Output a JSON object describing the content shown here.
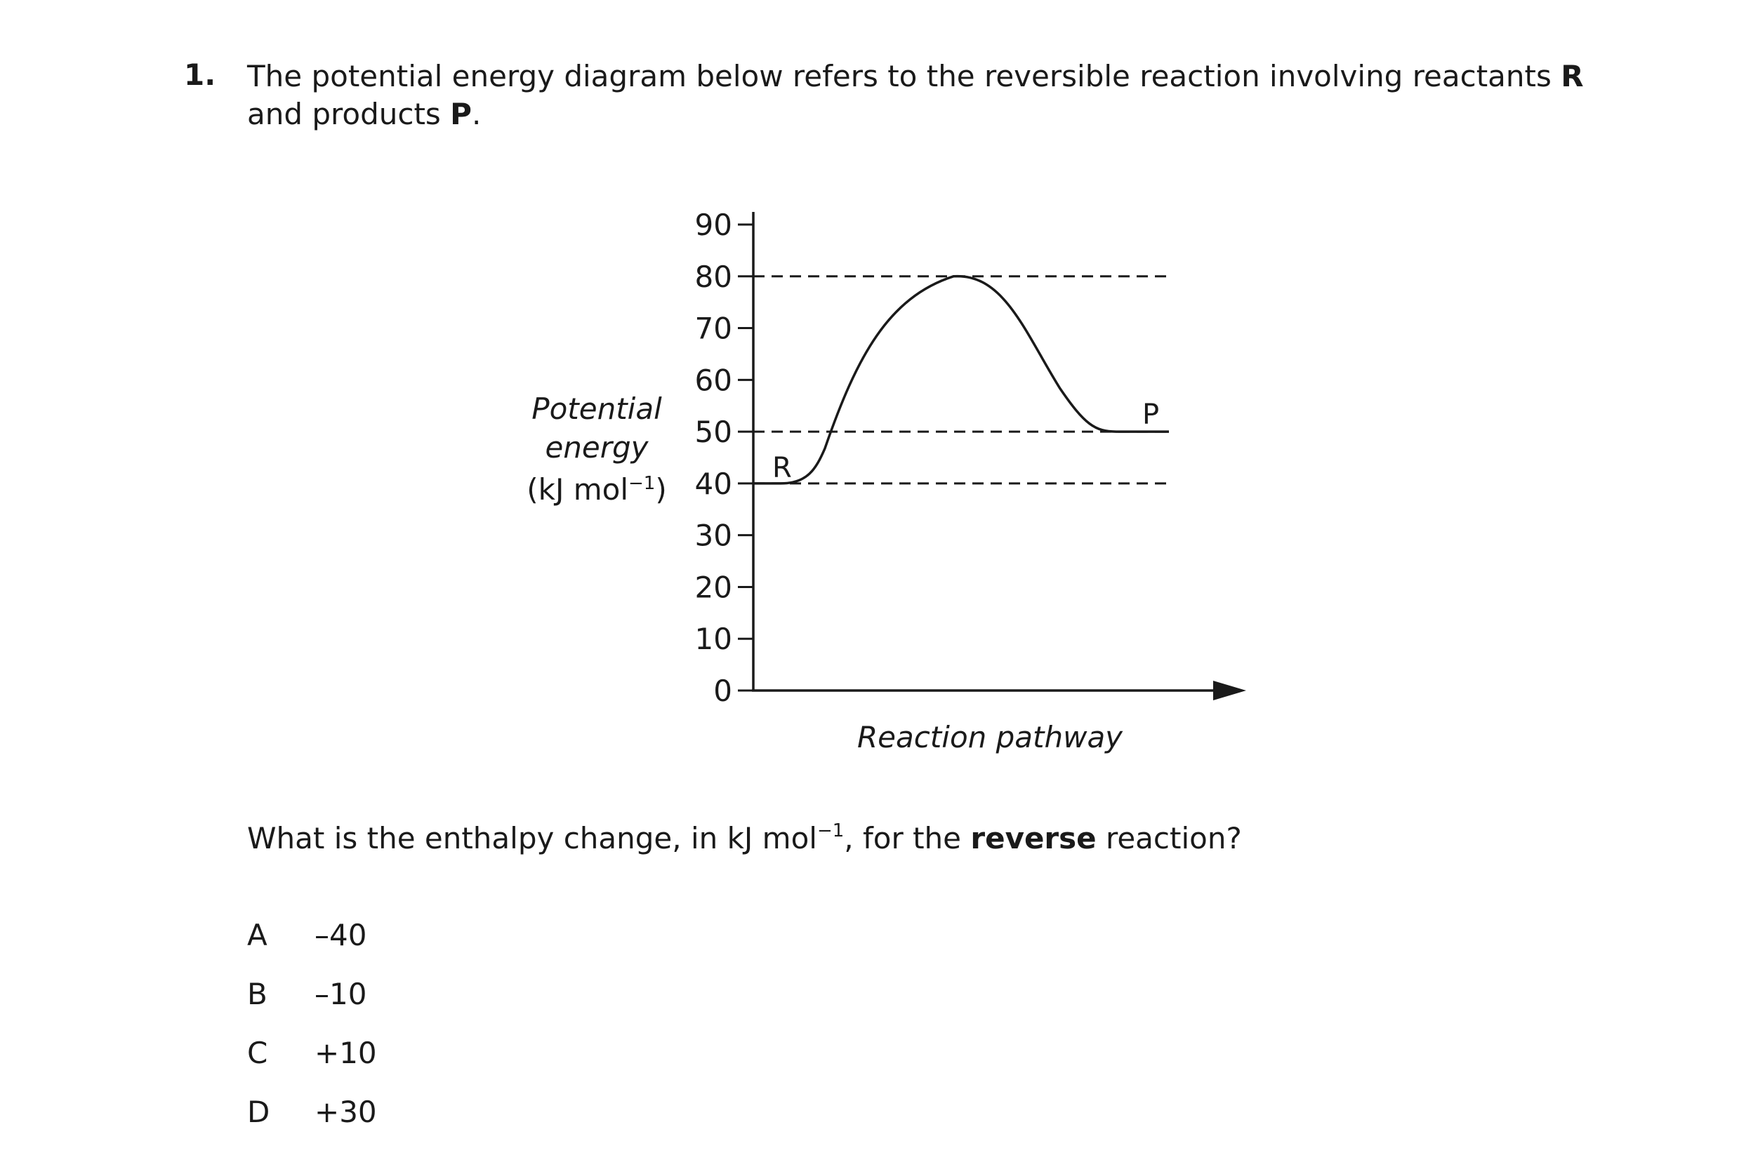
{
  "question": {
    "number": "1.",
    "stem_prefix": "The potential energy diagram below refers to the reversible reaction involving reactants ",
    "stem_r": "R",
    "stem_middle": " and products ",
    "stem_p": "P",
    "stem_end": ".",
    "prompt_prefix": "What is the enthalpy change, in kJ mol",
    "prompt_exp": "−1",
    "prompt_middle": ", for the ",
    "prompt_bold": "reverse",
    "prompt_end": " reaction?"
  },
  "diagram": {
    "ylabel_line1": "Potential",
    "ylabel_line2": "energy",
    "ylabel_line3_prefix": "(kJ mol",
    "ylabel_line3_exp": "−1",
    "ylabel_line3_suffix": ")",
    "xlabel": "Reaction pathway",
    "reactant_label": "R",
    "product_label": "P",
    "yticks": [
      0,
      10,
      20,
      30,
      40,
      50,
      60,
      70,
      80,
      90
    ],
    "ytick_labels": [
      "0",
      "10",
      "20",
      "30",
      "40",
      "50",
      "60",
      "70",
      "80",
      "90"
    ],
    "ylim": [
      0,
      90
    ],
    "reactant_energy": 40,
    "product_energy": 50,
    "peak_energy": 80,
    "dashed_levels": [
      80,
      50,
      40
    ],
    "line_color": "#1a1a1a"
  },
  "options": [
    {
      "letter": "A",
      "value": "–40"
    },
    {
      "letter": "B",
      "value": "–10"
    },
    {
      "letter": "C",
      "value": "+10"
    },
    {
      "letter": "D",
      "value": "+30"
    }
  ]
}
